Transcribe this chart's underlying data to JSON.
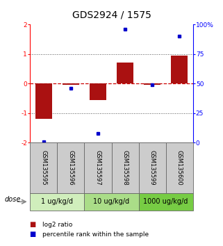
{
  "title": "GDS2924 / 1575",
  "samples": [
    "GSM135595",
    "GSM135596",
    "GSM135597",
    "GSM135598",
    "GSM135599",
    "GSM135600"
  ],
  "log2_ratio": [
    -1.2,
    -0.05,
    -0.55,
    0.72,
    -0.05,
    0.95
  ],
  "percentile_rank": [
    1,
    46,
    8,
    96,
    49,
    90
  ],
  "dose_groups": [
    {
      "label": "1 ug/kg/d",
      "samples": [
        0,
        1
      ],
      "color": "#d0eebc"
    },
    {
      "label": "10 ug/kg/d",
      "samples": [
        2,
        3
      ],
      "color": "#aadd88"
    },
    {
      "label": "1000 ug/kg/d",
      "samples": [
        4,
        5
      ],
      "color": "#77cc44"
    }
  ],
  "ylim_left": [
    -2,
    2
  ],
  "ylim_right": [
    0,
    100
  ],
  "bar_color": "#aa1111",
  "dot_color": "#0000cc",
  "hline_zero_color": "#cc0000",
  "hline_dotted_color": "#555555",
  "background_color": "#ffffff",
  "plot_bg_color": "#ffffff",
  "sample_bg_color": "#cccccc",
  "dose_label": "dose",
  "legend_log2": "log2 ratio",
  "legend_pct": "percentile rank within the sample",
  "title_fontsize": 10,
  "tick_fontsize": 6.5,
  "sample_fontsize": 6,
  "dose_fontsize": 7,
  "legend_fontsize": 6.5
}
